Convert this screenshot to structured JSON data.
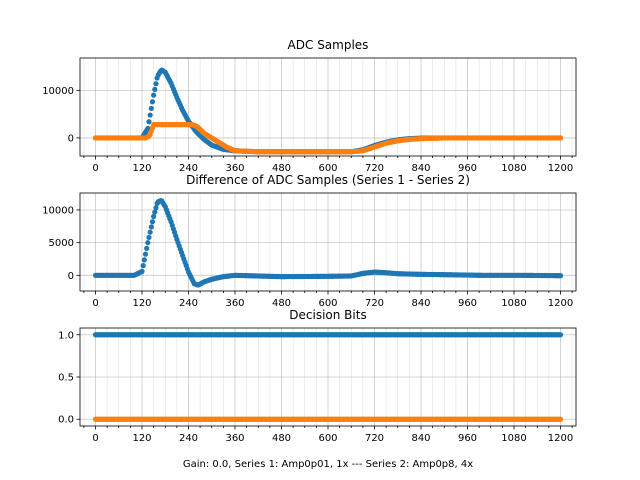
{
  "figure": {
    "xlabel": "Gain: 0.0, Series 1: Amp0p01, 1x --- Series 2: Amp0p8, 4x"
  },
  "colors": {
    "series1": "#1f77b4",
    "series2": "#ff7f0e",
    "grid": "#b0b0b0"
  },
  "chart_data": [
    {
      "type": "scatter",
      "title": "ADC Samples",
      "xlim": [
        -40,
        1240
      ],
      "ylim": [
        -3800,
        16800
      ],
      "grid": true,
      "xticks": [
        0,
        120,
        240,
        360,
        480,
        600,
        720,
        840,
        960,
        1080,
        1200
      ],
      "yticks": [
        0,
        10000
      ],
      "series": [
        {
          "key": "s1",
          "x": [
            0,
            120,
            135,
            150,
            160,
            170,
            180,
            195,
            210,
            225,
            240,
            260,
            280,
            300,
            330,
            360,
            420,
            480,
            600,
            660,
            690,
            720,
            750,
            780,
            810,
            840,
            900,
            960,
            1080,
            1200
          ],
          "y": [
            0,
            0,
            2000,
            9000,
            13000,
            14300,
            13800,
            11500,
            8500,
            5800,
            3500,
            1300,
            -300,
            -1500,
            -2400,
            -2700,
            -2900,
            -2900,
            -2900,
            -2900,
            -2500,
            -1600,
            -900,
            -400,
            -150,
            -50,
            0,
            0,
            0,
            0
          ]
        },
        {
          "key": "s2",
          "x": [
            0,
            130,
            140,
            150,
            250,
            260,
            270,
            280,
            300,
            320,
            340,
            360,
            420,
            480,
            600,
            660,
            690,
            720,
            750,
            780,
            810,
            840,
            900,
            960,
            1080,
            1200
          ],
          "y": [
            0,
            0,
            500,
            2800,
            2800,
            2500,
            1800,
            1000,
            0,
            -1000,
            -2000,
            -2700,
            -2900,
            -2900,
            -2900,
            -2900,
            -2700,
            -1900,
            -1100,
            -600,
            -300,
            -150,
            0,
            0,
            0,
            0
          ]
        }
      ]
    },
    {
      "type": "scatter",
      "title": "Difference of ADC Samples (Series 1 - Series 2)",
      "xlim": [
        -40,
        1240
      ],
      "ylim": [
        -2400,
        12600
      ],
      "grid": true,
      "xticks": [
        0,
        120,
        240,
        360,
        480,
        600,
        720,
        840,
        960,
        1080,
        1200
      ],
      "yticks": [
        0,
        5000,
        10000
      ],
      "series": [
        {
          "key": "s1",
          "x": [
            0,
            100,
            120,
            135,
            150,
            160,
            170,
            180,
            195,
            210,
            225,
            240,
            255,
            265,
            280,
            300,
            330,
            360,
            420,
            480,
            600,
            660,
            690,
            720,
            750,
            780,
            840,
            900,
            1000,
            1100,
            1200
          ],
          "y": [
            0,
            0,
            600,
            5000,
            9000,
            11200,
            11500,
            10500,
            8200,
            5500,
            3000,
            500,
            -1300,
            -1500,
            -1000,
            -600,
            -200,
            0,
            -100,
            -200,
            -150,
            -100,
            300,
            500,
            400,
            250,
            150,
            100,
            0,
            0,
            -50
          ]
        }
      ]
    },
    {
      "type": "scatter",
      "title": "Decision Bits",
      "xlim": [
        -40,
        1240
      ],
      "ylim": [
        -0.08,
        1.08
      ],
      "grid": true,
      "xticks": [
        0,
        120,
        240,
        360,
        480,
        600,
        720,
        840,
        960,
        1080,
        1200
      ],
      "yticks": [
        0.0,
        0.5,
        1.0
      ],
      "ytick_labels": [
        "0.0",
        "0.5",
        "1.0"
      ],
      "series": [
        {
          "key": "s1",
          "x": [
            0,
            1200
          ],
          "y": [
            1,
            1
          ]
        },
        {
          "key": "s2",
          "x": [
            0,
            1200
          ],
          "y": [
            0,
            0
          ]
        }
      ]
    }
  ]
}
